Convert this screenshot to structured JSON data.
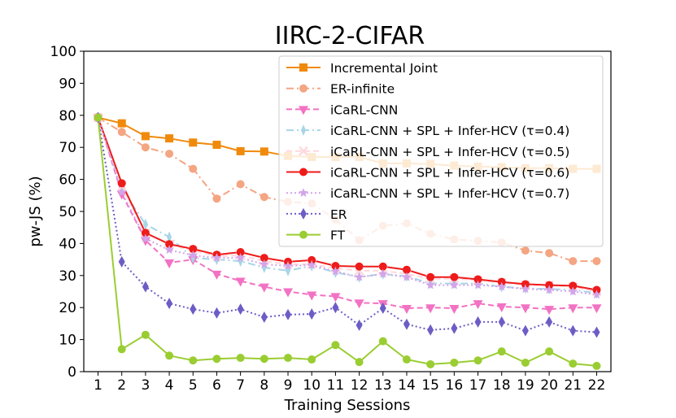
{
  "chart_data": {
    "type": "line",
    "title": "IIRC-2-CIFAR",
    "xlabel": "Training Sessions",
    "ylabel": "pw-JS (%)",
    "x": [
      1,
      2,
      3,
      4,
      5,
      6,
      7,
      8,
      9,
      10,
      11,
      12,
      13,
      14,
      15,
      16,
      17,
      18,
      19,
      20,
      21,
      22
    ],
    "xlim": [
      0.4,
      22.6
    ],
    "ylim": [
      0,
      100
    ],
    "yticks": [
      0,
      10,
      20,
      30,
      40,
      50,
      60,
      70,
      80,
      90,
      100
    ],
    "grid": false,
    "legend_position": "top-right",
    "series": [
      {
        "name": "Incremental Joint",
        "color": "#f08a0c",
        "dash": "solid",
        "marker": "square",
        "values": [
          79.3,
          77.5,
          73.5,
          72.8,
          71.5,
          70.8,
          68.8,
          68.7,
          67.3,
          67.0,
          67.0,
          67.0,
          65.0,
          65.0,
          64.8,
          64.3,
          64.0,
          63.8,
          63.5,
          63.5,
          63.3,
          63.3
        ]
      },
      {
        "name": "ER-infinite",
        "color": "#f4a582",
        "dash": "dashdot",
        "marker": "circle",
        "values": [
          79.3,
          74.8,
          70.0,
          68.0,
          63.3,
          54.0,
          58.5,
          54.5,
          53.0,
          52.5,
          47.5,
          41.0,
          45.5,
          46.3,
          43.0,
          41.3,
          40.8,
          40.3,
          37.8,
          37.0,
          34.5,
          34.5
        ]
      },
      {
        "name": "iCaRL-CNN",
        "color": "#f272c3",
        "dash": "dashed",
        "marker": "triangle-down",
        "values": [
          79.3,
          55.5,
          41.0,
          34.0,
          35.0,
          30.5,
          28.3,
          26.5,
          25.0,
          24.0,
          23.5,
          21.5,
          21.3,
          19.8,
          20.0,
          19.8,
          21.3,
          20.3,
          20.0,
          19.5,
          20.0,
          20.0
        ]
      },
      {
        "name": "iCaRL-CNN + SPL + Infer-HCV (τ=0.4)",
        "color": "#a6d6e7",
        "dash": "dashdot",
        "marker": "diamond-thin",
        "values": [
          79.3,
          57.0,
          46.0,
          42.0,
          35.5,
          35.0,
          34.5,
          32.5,
          31.5,
          33.0,
          31.0,
          29.5,
          30.5,
          29.8,
          27.5,
          27.5,
          27.5,
          26.5,
          26.0,
          25.8,
          25.5,
          24.5
        ]
      },
      {
        "name": "iCaRL-CNN + SPL + Infer-HCV (τ=0.5)",
        "color": "#ffd7dc",
        "dash": "dashed",
        "marker": "x",
        "values": [
          79.3,
          57.8,
          43.3,
          39.8,
          37.8,
          36.0,
          36.3,
          34.5,
          33.5,
          33.5,
          32.3,
          31.5,
          31.5,
          30.5,
          29.0,
          29.0,
          28.5,
          27.8,
          27.0,
          27.0,
          26.5,
          25.0
        ]
      },
      {
        "name": "iCaRL-CNN + SPL + Infer-HCV (τ=0.6)",
        "color": "#ee1b1b",
        "dash": "solid",
        "marker": "circle",
        "values": [
          79.3,
          58.8,
          43.3,
          39.8,
          38.3,
          36.5,
          37.3,
          35.5,
          34.3,
          34.8,
          33.0,
          32.8,
          32.8,
          31.8,
          29.5,
          29.5,
          28.8,
          28.0,
          27.3,
          27.0,
          26.8,
          25.5
        ]
      },
      {
        "name": "iCaRL-CNN + SPL + Infer-HCV (τ=0.7)",
        "color": "#d3a4ea",
        "dash": "dotted",
        "marker": "star",
        "values": [
          79.3,
          56.0,
          41.5,
          38.0,
          36.3,
          35.5,
          35.5,
          33.5,
          33.0,
          33.3,
          31.3,
          29.5,
          30.5,
          29.5,
          27.0,
          27.0,
          27.0,
          26.5,
          25.8,
          25.5,
          25.0,
          24.0
        ]
      },
      {
        "name": "ER",
        "color": "#6c5dc6",
        "dash": "dotted",
        "marker": "diamond",
        "values": [
          79.3,
          34.3,
          26.5,
          21.3,
          19.5,
          18.3,
          19.5,
          17.0,
          17.8,
          18.0,
          20.0,
          14.5,
          19.8,
          14.8,
          13.0,
          13.5,
          15.5,
          15.5,
          12.8,
          15.5,
          12.8,
          12.3
        ]
      },
      {
        "name": "FT",
        "color": "#9acd32",
        "dash": "solid",
        "marker": "circle",
        "values": [
          79.3,
          7.0,
          11.5,
          5.0,
          3.5,
          4.0,
          4.3,
          4.0,
          4.3,
          3.8,
          8.3,
          3.0,
          9.5,
          3.8,
          2.3,
          2.8,
          3.5,
          6.3,
          2.8,
          6.3,
          2.5,
          1.8
        ]
      }
    ]
  }
}
